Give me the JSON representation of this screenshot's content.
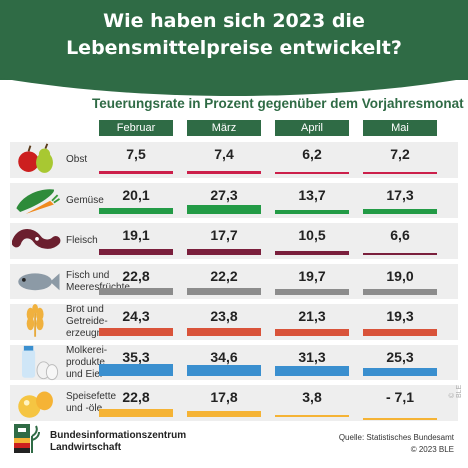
{
  "header": {
    "title_line1": "Wie haben sich 2023 die",
    "title_line2": "Lebensmittelpreise entwickelt?"
  },
  "chart_data": {
    "type": "bar",
    "title": "Teuerungsrate in Prozent gegenüber dem Vorjahresmonat",
    "categories": [
      "Februar",
      "März",
      "April",
      "Mai"
    ],
    "series": [
      {
        "name": "Obst",
        "label_lines": [
          "Obst"
        ],
        "icon": "apple-pear-icon",
        "color": "#cc1f4a",
        "values": [
          7.5,
          7.4,
          6.2,
          7.2
        ],
        "labels": [
          "7,5",
          "7,4",
          "6,2",
          "7,2"
        ]
      },
      {
        "name": "Gemüse",
        "label_lines": [
          "Gemüse"
        ],
        "icon": "cucumber-carrot-icon",
        "color": "#239b46",
        "values": [
          20.1,
          27.3,
          13.7,
          17.3
        ],
        "labels": [
          "20,1",
          "27,3",
          "13,7",
          "17,3"
        ]
      },
      {
        "name": "Fleisch",
        "label_lines": [
          "Fleisch"
        ],
        "icon": "sausage-icon",
        "color": "#7a1f3c",
        "values": [
          19.1,
          17.7,
          10.5,
          6.6
        ],
        "labels": [
          "19,1",
          "17,7",
          "10,5",
          "6,6"
        ]
      },
      {
        "name": "Fisch und Meeresfrüchte",
        "label_lines": [
          "Fisch und",
          "Meeresfrüchte"
        ],
        "icon": "fish-icon",
        "color": "#8c8c8c",
        "values": [
          22.8,
          22.2,
          19.7,
          19.0
        ],
        "labels": [
          "22,8",
          "22,2",
          "19,7",
          "19,0"
        ]
      },
      {
        "name": "Brot und Getreideerzeugnisse",
        "label_lines": [
          "Brot und",
          "Getreide-",
          "erzeugnisse"
        ],
        "icon": "wheat-icon",
        "color": "#d9533a",
        "values": [
          24.3,
          23.8,
          21.3,
          19.3
        ],
        "labels": [
          "24,3",
          "23,8",
          "21,3",
          "19,3"
        ]
      },
      {
        "name": "Molkereiprodukte und Eier",
        "label_lines": [
          "Molkerei-",
          "produkte",
          "und Eier"
        ],
        "icon": "milk-eggs-icon",
        "color": "#3a8fcf",
        "values": [
          35.3,
          34.6,
          31.3,
          25.3
        ],
        "labels": [
          "35,3",
          "34,6",
          "31,3",
          "25,3"
        ]
      },
      {
        "name": "Speisefette und -öle",
        "label_lines": [
          "Speisefette",
          "und -öle"
        ],
        "icon": "oil-icon",
        "color": "#f5b335",
        "values": [
          22.8,
          17.8,
          3.8,
          -7.1
        ],
        "labels": [
          "22,8",
          "17,8",
          "3,8",
          "- 7,1"
        ]
      }
    ]
  },
  "footer": {
    "org_line1": "Bundesinformationszentrum",
    "org_line2": "Landwirtschaft",
    "source_line1": "Quelle: Statistisches Bundesamt",
    "source_line2": "© 2023 BLE",
    "watermark": "© BLE"
  }
}
